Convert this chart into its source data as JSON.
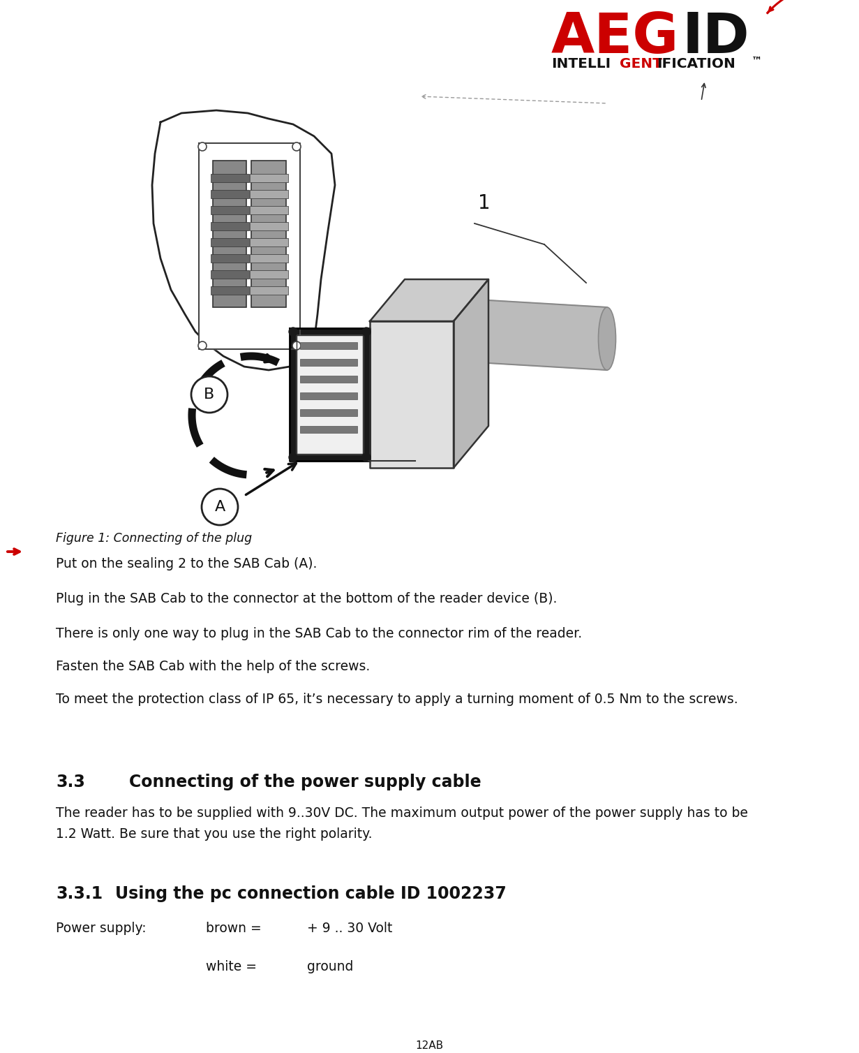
{
  "bg_color": "#ffffff",
  "logo_aeg_color": "#cc0000",
  "logo_id_color": "#111111",
  "text_color": "#111111",
  "arrow_marker_color": "#cc0000",
  "figure_caption": "Figure 1: Connecting of the plug",
  "bullet1": "Put on the sealing 2 to the SAB Cab (A).",
  "bullet2": "Plug in the SAB Cab to the connector at the bottom of the reader device (B).",
  "bullet3": "There is only one way to plug in the SAB Cab to the connector rim of the reader.",
  "bullet4": "Fasten the SAB Cab with the help of the screws.",
  "bullet5": "To meet the protection class of IP 65, it’s necessary to apply a turning moment of 0.5 Nm to the screws.",
  "section_33_num": "3.3",
  "section_33_title": "Connecting of the power supply cable",
  "section_33_body1": "The reader has to be supplied with 9..30V DC. The maximum output power of the power supply has to be",
  "section_33_body2": "1.2 Watt. Be sure that you use the right polarity.",
  "section_331_num": "3.3.1",
  "section_331_title": "Using the pc connection cable ID 1002237",
  "power_supply_label": "Power supply:",
  "brown_label": "brown =",
  "brown_value": "+ 9 .. 30 Volt",
  "white_label": "white =",
  "white_value": "ground",
  "page_num": "12AB"
}
